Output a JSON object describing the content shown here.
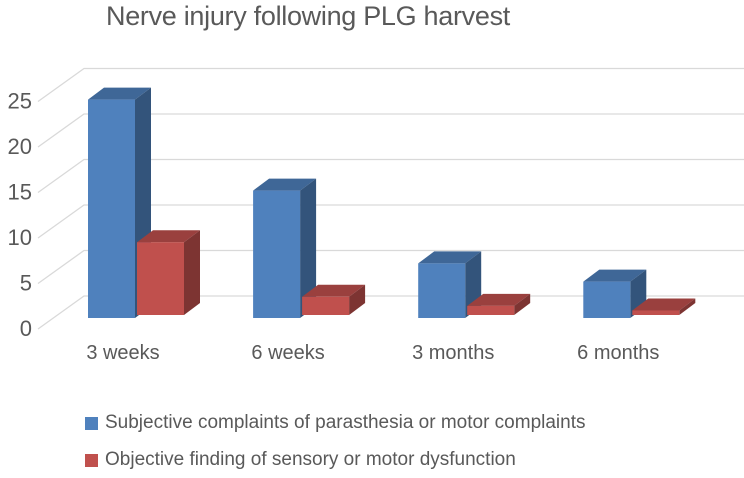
{
  "chart_data": {
    "type": "bar",
    "variant": "3d-clustered-column",
    "title": "Nerve injury following PLG harvest",
    "categories": [
      "3 weeks",
      "6 weeks",
      "3 months",
      "6 months"
    ],
    "series": [
      {
        "name": "Subjective complaints of parasthesia or motor complaints",
        "color": "#4f81bd",
        "values": [
          24,
          14,
          6,
          4
        ]
      },
      {
        "name": "Objective finding of sensory or motor dysfunction",
        "color": "#c0504d",
        "values": [
          8,
          2,
          1,
          0.5
        ]
      }
    ],
    "y_ticks": [
      0,
      5,
      10,
      15,
      20,
      25
    ],
    "ylim": [
      0,
      25
    ],
    "xlabel": "",
    "ylabel": "",
    "grid": true,
    "legend_position": "bottom-left",
    "colors": {
      "text": "#595959",
      "gridline": "#d9d9d9",
      "background": "#ffffff"
    }
  }
}
